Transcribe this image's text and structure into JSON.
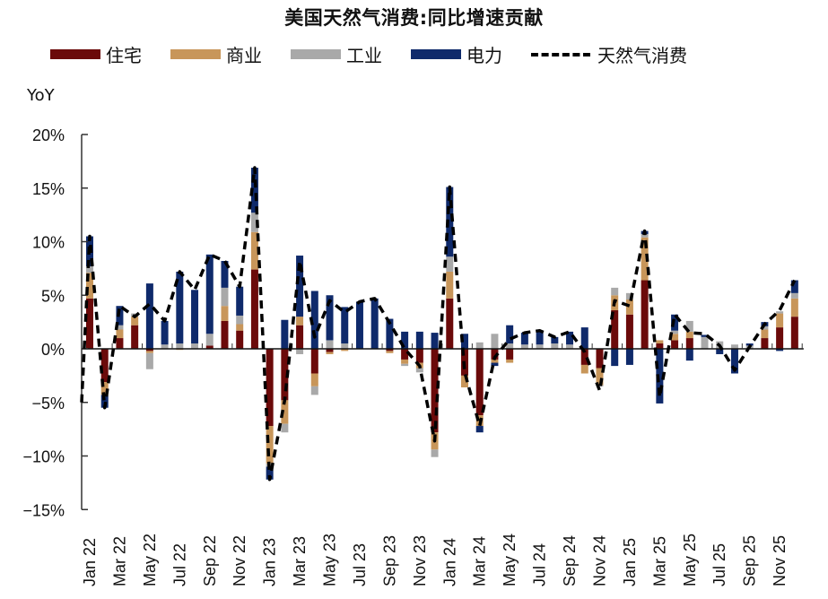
{
  "title": "美国天然气消费:同比增速贡献",
  "legend": [
    {
      "label": "住宅",
      "color": "#6b0a0a",
      "type": "bar"
    },
    {
      "label": "商业",
      "color": "#c8965a",
      "type": "bar"
    },
    {
      "label": "工业",
      "color": "#a9a9a9",
      "type": "bar"
    },
    {
      "label": "电力",
      "color": "#0f2a6b",
      "type": "bar"
    },
    {
      "label": "天然气消费",
      "color": "#000000",
      "type": "dashed-line"
    }
  ],
  "y_axis_label": "YoY",
  "chart_data": {
    "type": "bar",
    "stacked": true,
    "title": "美国天然气消费:同比增速贡献",
    "xlabel": "",
    "ylabel": "YoY",
    "ylim": [
      -15,
      20
    ],
    "yticks": [
      "20%",
      "15%",
      "10%",
      "5%",
      "0%",
      "−5%",
      "−10%",
      "−15%"
    ],
    "ytick_values": [
      20,
      15,
      10,
      5,
      0,
      -5,
      -10,
      -15
    ],
    "legend_position": "top",
    "grid": false,
    "x_tick_labels": [
      "Jan 22",
      "Mar 22",
      "May 22",
      "Jul 22",
      "Sep 22",
      "Nov 22",
      "Jan 23",
      "Mar 23",
      "May 23",
      "Jul 23",
      "Sep 23",
      "Nov 23",
      "Jan 24",
      "Mar 24",
      "May 24",
      "Jul 24",
      "Sep 24",
      "Nov 24",
      "Jan 25",
      "Mar 25",
      "May 25",
      "Jul 25",
      "Sep 25",
      "Nov 25"
    ],
    "categories": [
      "Jan 22",
      "Feb 22",
      "Mar 22",
      "Apr 22",
      "May 22",
      "Jun 22",
      "Jul 22",
      "Aug 22",
      "Sep 22",
      "Oct 22",
      "Nov 22",
      "Dec 22",
      "Jan 23",
      "Feb 23",
      "Mar 23",
      "Apr 23",
      "May 23",
      "Jun 23",
      "Jul 23",
      "Aug 23",
      "Sep 23",
      "Oct 23",
      "Nov 23",
      "Dec 23",
      "Jan 24",
      "Feb 24",
      "Mar 24",
      "Apr 24",
      "May 24",
      "Jun 24",
      "Jul 24",
      "Aug 24",
      "Sep 24",
      "Oct 24",
      "Nov 24",
      "Dec 24",
      "Jan 25",
      "Feb 25",
      "Mar 25",
      "Apr 25",
      "May 25",
      "Jun 25",
      "Jul 25",
      "Aug 25",
      "Sep 25",
      "Oct 25",
      "Nov 25",
      "Dec 25"
    ],
    "series": [
      {
        "name": "住宅",
        "color": "#6b0a0a",
        "values": [
          4.7,
          -3.1,
          1.0,
          2.2,
          -0.2,
          0.0,
          0.0,
          0.0,
          0.3,
          2.6,
          1.7,
          7.4,
          -7.2,
          -4.8,
          2.2,
          -2.3,
          -0.3,
          0.0,
          0.0,
          0.0,
          -0.2,
          -1.0,
          -1.3,
          -7.8,
          4.7,
          -2.5,
          -6.2,
          -1.0,
          -1.0,
          0.0,
          0.0,
          0.0,
          0.0,
          -1.5,
          -1.8,
          3.6,
          3.2,
          6.4,
          0.5,
          0.8,
          1.0,
          0.0,
          0.0,
          0.0,
          0.0,
          1.0,
          2.0,
          3.0
        ]
      },
      {
        "name": "商业",
        "color": "#c8965a",
        "values": [
          2.4,
          -1.2,
          0.8,
          0.8,
          -0.2,
          0.0,
          -0.1,
          0.0,
          0.0,
          1.4,
          0.6,
          3.5,
          -3.5,
          -2.2,
          0.8,
          -1.2,
          -0.2,
          -0.2,
          0.0,
          0.0,
          -0.2,
          -0.4,
          -0.5,
          -1.6,
          2.5,
          -1.1,
          -1.0,
          -0.3,
          -0.3,
          0.0,
          0.0,
          0.0,
          0.0,
          -0.8,
          -1.6,
          1.4,
          1.4,
          4.0,
          0.3,
          0.6,
          0.6,
          0.0,
          0.0,
          0.0,
          0.0,
          0.8,
          1.3,
          1.7
        ]
      },
      {
        "name": "工业",
        "color": "#a9a9a9",
        "values": [
          0.6,
          0.0,
          0.4,
          0.3,
          -1.5,
          0.4,
          0.5,
          0.5,
          1.1,
          1.7,
          0.8,
          1.8,
          -0.3,
          -0.8,
          -0.5,
          -0.8,
          0.8,
          0.5,
          0.0,
          0.0,
          0.0,
          -0.2,
          -0.4,
          -0.7,
          1.4,
          0.0,
          0.6,
          1.4,
          0.5,
          0.4,
          0.4,
          0.5,
          0.4,
          0.0,
          -0.1,
          0.7,
          0.6,
          0.3,
          0.0,
          0.3,
          1.0,
          1.1,
          0.7,
          0.4,
          0.3,
          0.3,
          0.2,
          0.5
        ]
      },
      {
        "name": "电力",
        "color": "#0f2a6b",
        "values": [
          2.8,
          -1.2,
          1.8,
          0.0,
          6.1,
          2.2,
          6.7,
          5.0,
          7.4,
          2.5,
          2.7,
          4.2,
          -1.2,
          2.7,
          5.7,
          5.4,
          4.2,
          3.4,
          4.4,
          4.7,
          2.8,
          1.6,
          1.6,
          1.5,
          6.5,
          1.4,
          -0.6,
          -0.3,
          1.7,
          1.1,
          1.3,
          0.6,
          1.2,
          2.0,
          0.0,
          -1.6,
          -1.5,
          0.3,
          -5.1,
          1.5,
          -1.1,
          0.2,
          -0.5,
          -2.3,
          0.2,
          0.4,
          -0.2,
          1.2
        ]
      }
    ],
    "line": {
      "name": "天然气消费",
      "prev_point": -5.0,
      "values": [
        10.5,
        -5.5,
        4.0,
        3.0,
        4.2,
        2.6,
        7.2,
        5.5,
        8.8,
        8.2,
        5.8,
        16.9,
        -12.2,
        -4.8,
        8.2,
        1.1,
        4.5,
        3.4,
        4.4,
        4.7,
        2.4,
        0.0,
        -1.6,
        -8.6,
        15.1,
        -2.2,
        -7.2,
        -0.8,
        0.9,
        1.5,
        1.7,
        1.1,
        1.6,
        -0.3,
        -3.9,
        4.5,
        4.0,
        11.0,
        -4.5,
        3.2,
        1.5,
        1.4,
        0.3,
        -2.0,
        0.2,
        2.3,
        3.6,
        6.4
      ]
    }
  }
}
